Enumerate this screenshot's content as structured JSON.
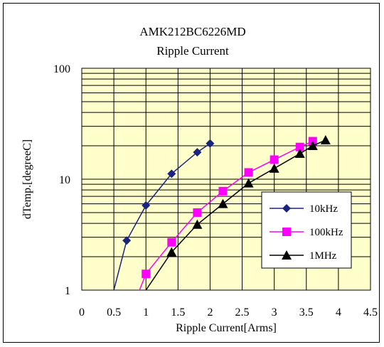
{
  "chart_data": {
    "type": "line",
    "title": "AMK212BC6226MD",
    "subtitle": "Ripple Current",
    "xlabel": "Ripple Current[Arms]",
    "ylabel": "dTemp.[degreeC]",
    "xlim": [
      0,
      4.5
    ],
    "ylim": [
      1,
      100
    ],
    "yscale": "log",
    "xticks": [
      "0",
      "0.5",
      "1",
      "1.5",
      "2",
      "2.5",
      "3",
      "3.5",
      "4",
      "4.5"
    ],
    "yticks": [
      "1",
      "10",
      "100"
    ],
    "grid": true,
    "plot_background": "#ffffcc",
    "legend_position": "right",
    "series": [
      {
        "name": "10kHz",
        "color": "#1a237e",
        "marker": "diamond",
        "x": [
          0.5,
          0.7,
          1.0,
          1.4,
          1.8,
          2.0
        ],
        "y": [
          1.0,
          2.8,
          5.8,
          11.2,
          17.5,
          21.0
        ]
      },
      {
        "name": "100kHz",
        "color": "#ff00ff",
        "marker": "square",
        "x": [
          0.9,
          1.0,
          1.4,
          1.8,
          2.2,
          2.6,
          3.0,
          3.4,
          3.6
        ],
        "y": [
          1.0,
          1.4,
          2.7,
          5.0,
          7.8,
          11.5,
          15.0,
          19.5,
          22.0
        ]
      },
      {
        "name": "1MHz",
        "color": "#000000",
        "marker": "triangle",
        "x": [
          1.0,
          1.4,
          1.8,
          2.2,
          2.6,
          3.0,
          3.4,
          3.6,
          3.8
        ],
        "y": [
          1.0,
          2.2,
          3.9,
          6.0,
          9.2,
          12.5,
          17.0,
          20.0,
          22.5
        ]
      }
    ]
  }
}
